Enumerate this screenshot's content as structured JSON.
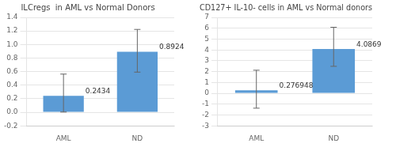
{
  "chart_data": [
    {
      "type": "bar",
      "title": "ILCregs  in AML vs Normal Donors",
      "categories": [
        "AML",
        "ND"
      ],
      "values": [
        0.2434,
        0.8924
      ],
      "errors_upper": [
        0.32,
        0.33
      ],
      "errors_lower": [
        0.24,
        0.3
      ],
      "color": "#5b9bd5",
      "ylim": [
        -0.2,
        1.4
      ],
      "yticks": [
        -0.2,
        {
          "value": 0,
          "label": "0.0"
        },
        0.2,
        0.4,
        0.6,
        0.8,
        {
          "value": 1,
          "label": "1.0"
        },
        1.2,
        1.4
      ],
      "grid": true,
      "data_labels": true
    },
    {
      "type": "bar",
      "title": "CD127+ IL-10- cells in AML vs Normal donors",
      "categories": [
        "AML",
        "ND"
      ],
      "values": [
        0.276948,
        4.0869
      ],
      "errors_upper": [
        1.85,
        2.0
      ],
      "errors_lower": [
        1.65,
        1.6
      ],
      "color": "#5b9bd5",
      "ylim": [
        -3,
        7
      ],
      "yticks": [
        -3,
        -2,
        -1,
        0,
        1,
        2,
        3,
        4,
        5,
        6,
        7
      ],
      "grid": true,
      "data_labels": true
    }
  ]
}
